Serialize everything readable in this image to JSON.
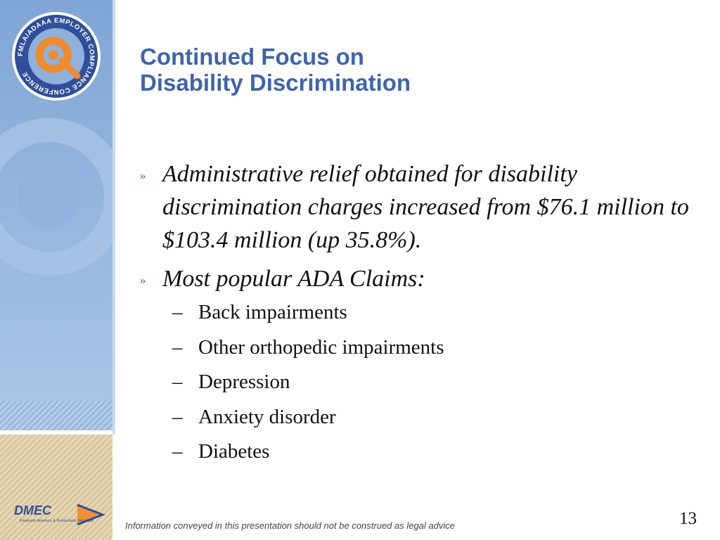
{
  "slide": {
    "title_line1": "Continued Focus on",
    "title_line2": "Disability Discrimination",
    "bullets": [
      {
        "marker": "»",
        "text": "Administrative relief obtained for disability discrimination charges increased from $76.1 million to $103.4 million (up 35.8%)."
      },
      {
        "marker": "»",
        "text": "Most popular ADA Claims:"
      }
    ],
    "sub_items": [
      {
        "dash": "–",
        "text": "Back impairments"
      },
      {
        "dash": "–",
        "text": "Other orthopedic impairments"
      },
      {
        "dash": "–",
        "text": "Depression"
      },
      {
        "dash": "–",
        "text": "Anxiety disorder"
      },
      {
        "dash": "–",
        "text": "Diabetes"
      }
    ],
    "footer_note": "Information conveyed in this presentation should not be construed as legal advice",
    "page_number": "13"
  },
  "logos": {
    "conference_badge_text": "FMLA/ADAAA EMPLOYER COMPLIANCE CONFERENCE",
    "dmec_name": "DMEC",
    "dmec_tagline": "Employer Absence & Productivity Solutions"
  },
  "colors": {
    "title": "#3f64ad",
    "sidebar_blue": "#8fb1dc",
    "sidebar_tan": "#e2d2ab",
    "badge_orange": "#ef8b2c"
  }
}
